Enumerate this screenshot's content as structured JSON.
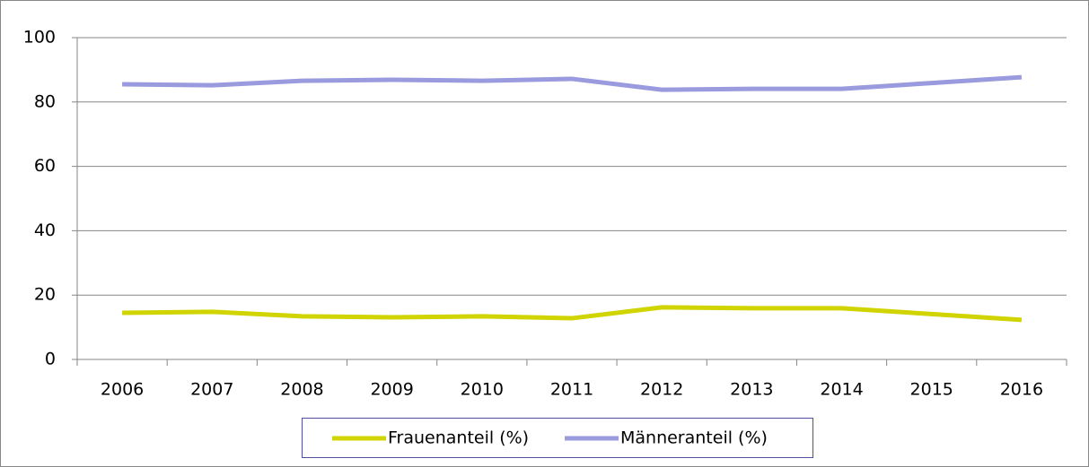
{
  "chart_data": {
    "type": "line",
    "categories": [
      "2006",
      "2007",
      "2008",
      "2009",
      "2010",
      "2011",
      "2012",
      "2013",
      "2014",
      "2015",
      "2016"
    ],
    "series": [
      {
        "name": "Frauenanteil (%)",
        "color": "#d0d400",
        "values": [
          14.5,
          14.8,
          13.4,
          13.1,
          13.4,
          12.8,
          16.2,
          15.9,
          15.9,
          14.1,
          12.3
        ]
      },
      {
        "name": "Männeranteil (%)",
        "color": "#9a9ade",
        "values": [
          85.5,
          85.2,
          86.6,
          86.9,
          86.6,
          87.2,
          83.8,
          84.1,
          84.1,
          85.9,
          87.7
        ]
      }
    ],
    "ylim": [
      0,
      100
    ],
    "yticks": [
      0,
      20,
      40,
      60,
      80,
      100
    ],
    "grid": true,
    "legend": "bottom"
  }
}
